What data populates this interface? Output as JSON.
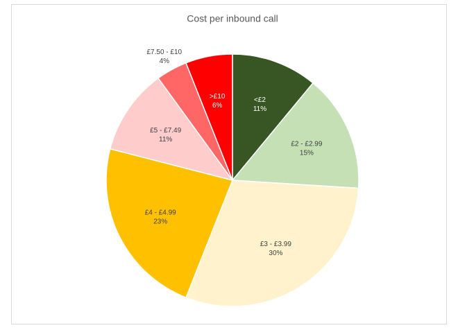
{
  "chart_data": {
    "type": "pie",
    "title": "Cost per inbound call",
    "categories": [
      "<£2",
      "£2 - £2.99",
      "£3 - £3.99",
      "£4 - £4.99",
      "£5 - £7.49",
      "£7.50 - £10",
      ">£10"
    ],
    "values": [
      11,
      15,
      30,
      23,
      11,
      4,
      6
    ],
    "value_labels": [
      "11%",
      "15%",
      "30%",
      "23%",
      "11%",
      "4%",
      "6%"
    ],
    "colors": [
      "#375623",
      "#c5e0b4",
      "#fff2cc",
      "#ffc000",
      "#ffcccc",
      "#ff6666",
      "#ff0000"
    ]
  }
}
